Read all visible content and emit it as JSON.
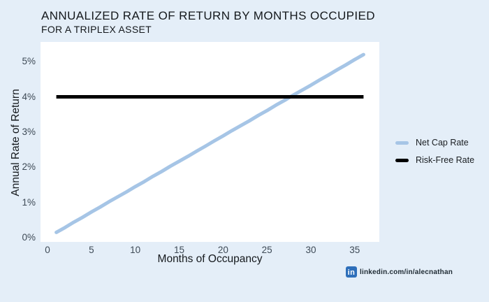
{
  "page": {
    "background_color": "#e4eef8",
    "plot_background_color": "#ffffff"
  },
  "chart_data": {
    "type": "line",
    "title": "ANNUALIZED RATE OF RETURN BY MONTHS OCCUPIED",
    "subtitle": "FOR A TRIPLEX ASSET",
    "xlabel": "Months of Occupancy",
    "ylabel": "Annual Rate of Return",
    "xlim": [
      -0.8,
      37.8
    ],
    "ylim": [
      -0.12,
      5.56
    ],
    "x_ticks": [
      0,
      5,
      10,
      15,
      20,
      25,
      30,
      35
    ],
    "y_ticks": [
      {
        "value": 0,
        "label": "0%"
      },
      {
        "value": 1,
        "label": "1%"
      },
      {
        "value": 2,
        "label": "2%"
      },
      {
        "value": 3,
        "label": "3%"
      },
      {
        "value": 4,
        "label": "4%"
      },
      {
        "value": 5,
        "label": "5%"
      }
    ],
    "grid": false,
    "legend_position": "right-outside",
    "series": [
      {
        "name": "Net Cap Rate",
        "color": "#a6c5e6",
        "line_width": 5,
        "line_cap": "round",
        "x": [
          1,
          2,
          3,
          4,
          5,
          6,
          7,
          8,
          9,
          10,
          11,
          12,
          13,
          14,
          15,
          16,
          17,
          18,
          19,
          20,
          21,
          22,
          23,
          24,
          25,
          26,
          27,
          28,
          29,
          30,
          31,
          32,
          33,
          34,
          35,
          36
        ],
        "values": [
          0.15,
          0.29,
          0.44,
          0.58,
          0.73,
          0.87,
          1.02,
          1.16,
          1.3,
          1.45,
          1.59,
          1.74,
          1.88,
          2.03,
          2.17,
          2.31,
          2.46,
          2.6,
          2.75,
          2.89,
          3.04,
          3.18,
          3.32,
          3.47,
          3.61,
          3.76,
          3.9,
          4.05,
          4.19,
          4.33,
          4.48,
          4.62,
          4.77,
          4.91,
          5.06,
          5.2
        ]
      },
      {
        "name": "Risk-Free Rate",
        "color": "#000000",
        "line_width": 5,
        "line_cap": "butt",
        "x": [
          1,
          36
        ],
        "values": [
          4.0,
          4.0
        ]
      }
    ]
  },
  "footer": {
    "linkedin_icon": "in",
    "linkedin_icon_color": "#2e6fba",
    "linkedin_text": "linkedin.com/in/alecnathan"
  }
}
